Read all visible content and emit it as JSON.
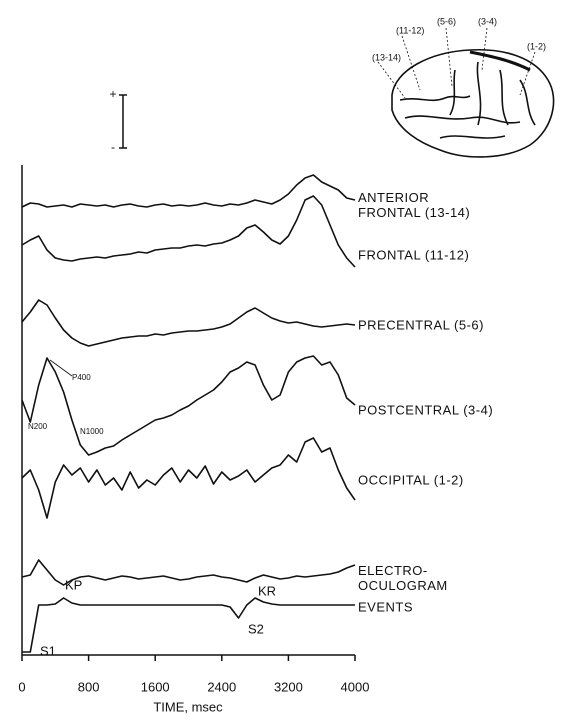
{
  "chart_data": {
    "type": "line",
    "xlabel": "TIME, msec",
    "x": [
      0,
      100,
      200,
      300,
      400,
      500,
      600,
      700,
      800,
      900,
      1000,
      1100,
      1200,
      1300,
      1400,
      1500,
      1600,
      1700,
      1800,
      1900,
      2000,
      2100,
      2200,
      2300,
      2400,
      2500,
      2600,
      2700,
      2800,
      2900,
      3000,
      3100,
      3200,
      3300,
      3400,
      3500,
      3600,
      3700,
      3800,
      3900,
      4000
    ],
    "xlim": [
      0,
      4000
    ],
    "xticks": [
      0,
      800,
      1600,
      2400,
      3200,
      4000
    ],
    "ylim": [
      0,
      500
    ],
    "series": [
      {
        "name": "ANTERIOR FRONTAL (13-14)",
        "color": "#111111",
        "values": [
          448,
          452,
          451,
          448,
          449,
          450,
          448,
          451,
          450,
          449,
          450,
          448,
          450,
          451,
          449,
          448,
          450,
          451,
          449,
          450,
          449,
          450,
          452,
          450,
          449,
          451,
          450,
          452,
          455,
          453,
          451,
          455,
          461,
          470,
          477,
          480,
          473,
          469,
          465,
          457,
          455
        ]
      },
      {
        "name": "FRONTAL (11-12)",
        "color": "#111111",
        "values": [
          410,
          415,
          419,
          405,
          397,
          395,
          394,
          396,
          397,
          398,
          397,
          399,
          400,
          401,
          403,
          402,
          405,
          406,
          407,
          407,
          409,
          410,
          409,
          411,
          412,
          415,
          419,
          427,
          430,
          423,
          415,
          411,
          419,
          435,
          455,
          459,
          450,
          430,
          410,
          397,
          388
        ]
      },
      {
        "name": "PRECENTRAL (5-6)",
        "color": "#111111",
        "values": [
          333,
          343,
          355,
          350,
          337,
          325,
          317,
          312,
          309,
          311,
          313,
          315,
          317,
          318,
          319,
          319,
          321,
          320,
          322,
          323,
          324,
          324,
          325,
          326,
          328,
          331,
          337,
          343,
          347,
          342,
          337,
          334,
          332,
          333,
          331,
          329,
          328,
          329,
          330,
          331,
          330
        ]
      },
      {
        "name": "POSTCENTRAL (3-4)",
        "color": "#111111",
        "values": [
          255,
          233,
          270,
          297,
          283,
          263,
          235,
          210,
          200,
          203,
          207,
          209,
          215,
          220,
          225,
          230,
          235,
          237,
          240,
          245,
          249,
          255,
          260,
          265,
          273,
          283,
          287,
          293,
          290,
          270,
          255,
          260,
          283,
          293,
          297,
          299,
          290,
          293,
          280,
          257,
          250
        ]
      },
      {
        "name": "OCCIPITAL (1-2)",
        "color": "#111111",
        "values": [
          177,
          185,
          165,
          137,
          173,
          190,
          180,
          187,
          173,
          185,
          170,
          177,
          165,
          183,
          167,
          175,
          170,
          180,
          187,
          173,
          185,
          177,
          189,
          171,
          183,
          175,
          179,
          185,
          173,
          180,
          187,
          190,
          200,
          193,
          213,
          217,
          203,
          207,
          185,
          167,
          155
        ]
      },
      {
        "name": "ELECTRO-OCULOGRAM",
        "color": "#111111",
        "values": [
          78,
          80,
          95,
          85,
          75,
          70,
          75,
          78,
          79,
          77,
          75,
          77,
          79,
          78,
          76,
          77,
          78,
          79,
          77,
          75,
          76,
          78,
          79,
          80,
          78,
          77,
          75,
          73,
          77,
          80,
          78,
          76,
          77,
          79,
          78,
          79,
          80,
          81,
          83,
          87,
          90
        ]
      },
      {
        "name": "EVENTS",
        "color": "#111111",
        "values": [
          3,
          3,
          50,
          50,
          51,
          57,
          52,
          50,
          50,
          50,
          50,
          50,
          50,
          50,
          50,
          50,
          50,
          50,
          50,
          50,
          50,
          50,
          50,
          50,
          50,
          48,
          37,
          50,
          57,
          53,
          51,
          50,
          50,
          50,
          50,
          50,
          50,
          50,
          50,
          50,
          50
        ]
      }
    ],
    "annotations": [
      "P400",
      "N200",
      "N1000",
      "KP",
      "S1",
      "S2",
      "KR"
    ],
    "calibration": [
      "+",
      "-"
    ],
    "brain_labels": [
      "(13-14)",
      "(11-12)",
      "(5-6)",
      "(3-4)",
      "(1-2)"
    ]
  }
}
